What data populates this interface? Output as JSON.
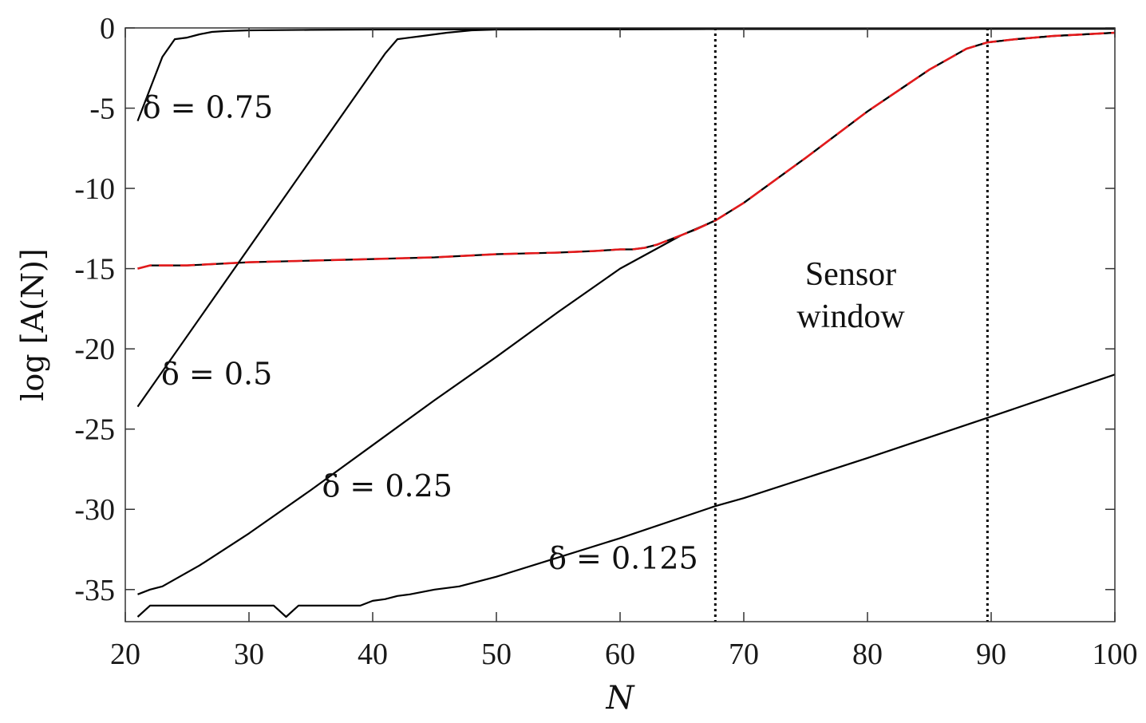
{
  "chart_data": {
    "type": "line",
    "title": "",
    "xlabel": "N",
    "ylabel": "log [A(N)]",
    "xlim": [
      20,
      100
    ],
    "ylim": [
      -37,
      0
    ],
    "xticks": [
      20,
      30,
      40,
      50,
      60,
      70,
      80,
      90,
      100
    ],
    "yticks": [
      0,
      -5,
      -10,
      -15,
      -20,
      -25,
      -30,
      -35
    ],
    "grid": false,
    "series": [
      {
        "style": "solid",
        "color": "#000000",
        "x": [
          21,
          22,
          23,
          24,
          25,
          26,
          27,
          28,
          30,
          35,
          40,
          60,
          80,
          100
        ],
        "y": [
          -5.8,
          -3.8,
          -1.8,
          -0.7,
          -0.6,
          -0.4,
          -0.25,
          -0.2,
          -0.15,
          -0.12,
          -0.1,
          -0.08,
          -0.06,
          -0.05
        ]
      },
      {
        "style": "solid",
        "color": "#000000",
        "x": [
          21,
          41,
          42,
          44,
          46,
          48,
          50,
          60,
          80,
          100
        ],
        "y": [
          -23.6,
          -1.6,
          -0.7,
          -0.5,
          -0.3,
          -0.15,
          -0.1,
          -0.08,
          -0.06,
          -0.05
        ]
      },
      {
        "style": "solid",
        "color": "#000000",
        "x": [
          21,
          22,
          23,
          26,
          30,
          35,
          40,
          45,
          50,
          55,
          60,
          65,
          67.7,
          70,
          75,
          80,
          85,
          88,
          89.7,
          92,
          95,
          100
        ],
        "y": [
          -35.3,
          -35.0,
          -34.8,
          -33.5,
          -31.5,
          -28.8,
          -26.0,
          -23.2,
          -20.5,
          -17.7,
          -15.0,
          -12.9,
          -12.0,
          -10.9,
          -8.1,
          -5.2,
          -2.6,
          -1.3,
          -0.9,
          -0.7,
          -0.5,
          -0.3
        ]
      },
      {
        "style": "solid",
        "color": "#000000",
        "x": [
          21,
          22,
          25,
          30,
          32,
          33,
          34,
          36,
          39,
          40,
          41,
          42,
          43,
          45,
          46,
          47,
          50,
          55,
          60,
          67.7,
          70,
          80,
          89.7,
          100
        ],
        "y": [
          -36.7,
          -36.0,
          -36.0,
          -36.0,
          -36.0,
          -36.7,
          -36.0,
          -36.0,
          -36.0,
          -35.7,
          -35.6,
          -35.4,
          -35.3,
          -35.0,
          -34.9,
          -34.8,
          -34.2,
          -33.0,
          -31.8,
          -29.8,
          -29.3,
          -26.8,
          -24.3,
          -21.6
        ]
      },
      {
        "style": "dashed",
        "color": "#e31a1c",
        "x": [
          21,
          22,
          25,
          30,
          35,
          40,
          45,
          50,
          55,
          58,
          60,
          61,
          62,
          63,
          64,
          65,
          66,
          67.7,
          70,
          75,
          80,
          85,
          88,
          89.7,
          92,
          95,
          100
        ],
        "y": [
          -15.0,
          -14.8,
          -14.8,
          -14.6,
          -14.5,
          -14.4,
          -14.3,
          -14.1,
          -14.0,
          -13.9,
          -13.8,
          -13.8,
          -13.7,
          -13.5,
          -13.2,
          -12.9,
          -12.6,
          -12.0,
          -10.9,
          -8.1,
          -5.2,
          -2.6,
          -1.3,
          -0.9,
          -0.7,
          -0.5,
          -0.3
        ]
      }
    ],
    "vlines": [
      {
        "x": 67.7,
        "style": "dotted"
      },
      {
        "x": 89.7,
        "style": "dotted"
      }
    ],
    "annotations": [
      {
        "text": "δ = 0.75",
        "x": 21.4,
        "y": -5.6
      },
      {
        "text": "δ = 0.5",
        "x": 22.9,
        "y": -22.2
      },
      {
        "text": "δ = 0.25",
        "x": 35.9,
        "y": -29.2
      },
      {
        "text": "δ = 0.125",
        "x": 54.2,
        "y": -33.7
      }
    ],
    "window_label": [
      "Sensor",
      "window"
    ]
  }
}
